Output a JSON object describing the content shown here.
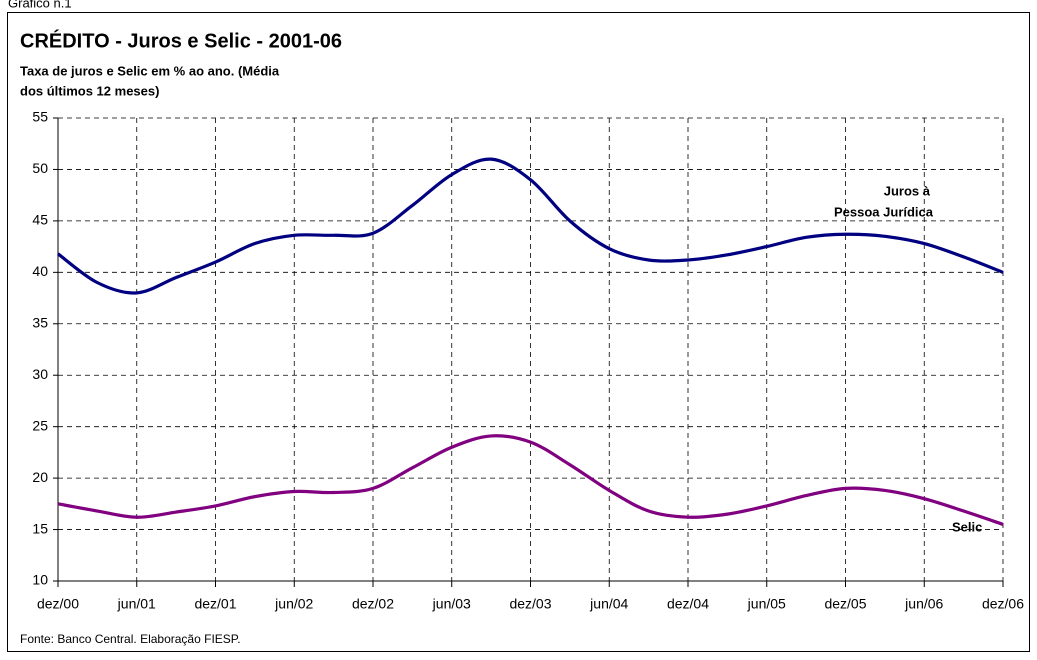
{
  "chart_data": {
    "type": "line",
    "header": "Gráfico n.1",
    "title": "CRÉDITO - Juros e Selic - 2001-06",
    "subtitle": [
      "Taxa de juros e Selic em % ao ano. (Média",
      "dos últimos 12 meses)"
    ],
    "source": "Fonte: Banco Central. Elaboração FIESP.",
    "annotations": [
      [
        "Juros à",
        "Pessoa Jurídica"
      ],
      [
        "Selic"
      ]
    ],
    "categories": [
      "dez/00",
      null,
      "jun/01",
      null,
      "dez/01",
      null,
      "jun/02",
      null,
      "dez/02",
      null,
      "jun/03",
      null,
      "dez/03",
      null,
      "jun/04",
      null,
      "dez/04",
      null,
      "jun/05",
      null,
      "dez/05",
      null,
      "jun/06",
      null,
      "dez/06"
    ],
    "series": [
      {
        "name": "Juros à Pessoa Jurídica",
        "color": "#000080",
        "values": [
          41.8,
          39,
          38,
          39.5,
          41,
          42.8,
          43.6,
          43.6,
          43.8,
          46.5,
          49.5,
          51,
          49,
          45,
          42.3,
          41.2,
          41.2,
          41.7,
          42.5,
          43.4,
          43.7,
          43.5,
          42.8,
          41.5,
          40
        ]
      },
      {
        "name": "Selic",
        "color": "#800080",
        "values": [
          17.5,
          16.8,
          16.2,
          16.7,
          17.3,
          18.2,
          18.7,
          18.6,
          19,
          21,
          23,
          24.1,
          23.5,
          21.3,
          18.8,
          16.8,
          16.2,
          16.5,
          17.3,
          18.3,
          19,
          18.8,
          18,
          16.8,
          15.5
        ]
      }
    ],
    "ylim": [
      10,
      55
    ],
    "yticks": [
      10,
      15,
      20,
      25,
      30,
      35,
      40,
      45,
      50,
      55
    ],
    "grid": true
  }
}
